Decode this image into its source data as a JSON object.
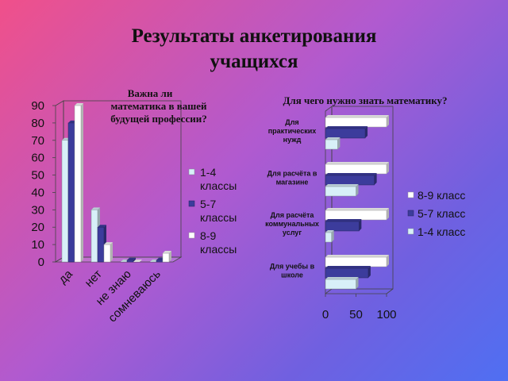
{
  "slide": {
    "title_line1": "Результаты анкетирования",
    "title_line2": "учащихся"
  },
  "chart_data": [
    {
      "type": "bar",
      "orientation": "vertical",
      "title_lines": [
        "Важна ли",
        "математика в вашей",
        "будущей профессии?"
      ],
      "categories": [
        "да",
        "нет",
        "не знаю",
        "сомневаюсь"
      ],
      "series": [
        {
          "name": "1-4 классы",
          "values": [
            70,
            30,
            0,
            0
          ],
          "color": "#d8f0f8"
        },
        {
          "name": "5-7 классы",
          "values": [
            80,
            20,
            1,
            1
          ],
          "color": "#3c3c9c"
        },
        {
          "name": "8-9 классы",
          "values": [
            90,
            10,
            0,
            5
          ],
          "color": "#ffffff"
        }
      ],
      "ylim": [
        0,
        90
      ],
      "yticks": [
        0,
        10,
        20,
        30,
        40,
        50,
        60,
        70,
        80,
        90
      ],
      "legend_lines": [
        [
          "1-4",
          "классы"
        ],
        [
          "5-7",
          "классы"
        ],
        [
          "8-9",
          "классы"
        ]
      ],
      "legend_position": "right",
      "grid": false
    },
    {
      "type": "bar",
      "orientation": "horizontal",
      "title": "Для чего нужно знать математику?",
      "categories": [
        [
          "Для",
          "практических",
          "нужд"
        ],
        [
          "Для расчёта в",
          "магазине"
        ],
        [
          "Для расчёта",
          "коммунальных",
          "услуг"
        ],
        [
          "Для учебы в",
          "школе"
        ]
      ],
      "series": [
        {
          "name": "8-9 класс",
          "values": [
            100,
            100,
            100,
            100
          ],
          "color": "#ffffff"
        },
        {
          "name": "5-7 класс",
          "values": [
            65,
            80,
            55,
            70
          ],
          "color": "#3c3c9c"
        },
        {
          "name": "1-4 класс",
          "values": [
            20,
            50,
            10,
            50
          ],
          "color": "#d8f0f8"
        }
      ],
      "xlim": [
        0,
        100
      ],
      "xticks": [
        0,
        50,
        100
      ],
      "legend_position": "right",
      "grid": false
    }
  ]
}
